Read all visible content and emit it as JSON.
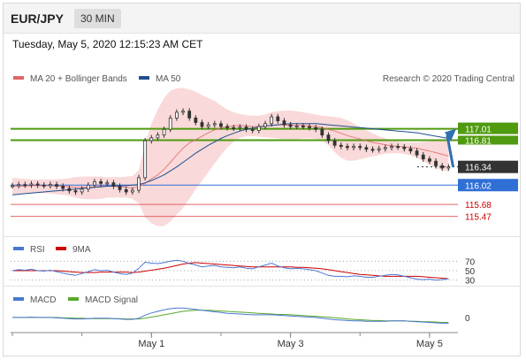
{
  "header": {
    "symbol": "EUR/JPY",
    "timeframe": "30 MIN"
  },
  "datetime": "Tuesday, May 5, 2020 12:15:23 AM CET",
  "credit": "Research © 2020 Trading Central",
  "colors": {
    "ma20": "#e06666",
    "band_fill": "#f8d0d0",
    "ma50": "#1f4f8f",
    "resistance": "#4f9a0f",
    "pivot": "#2f6fd6",
    "support": "#e06666",
    "current": "#333333",
    "arrow": "#2f6fb2",
    "candle": "#333333",
    "rsi": "#4a78d0",
    "rsi_ma": "#cc0000",
    "macd": "#4a78d0",
    "macd_signal": "#5aa82a"
  },
  "chart_data": [
    {
      "type": "candlestick",
      "legend": [
        "MA 20 + Bollinger Bands",
        "MA 50"
      ],
      "ylim": [
        115.2,
        117.75
      ],
      "x_ticks": [
        "May 1",
        "May 3",
        "May 5"
      ],
      "bars_per_tick": 22,
      "first_tick_bar": 22,
      "n_bars": 70,
      "close": [
        116.01,
        116.03,
        116.02,
        116.04,
        116.02,
        116.01,
        116.03,
        116.0,
        115.96,
        115.92,
        115.9,
        115.95,
        116.02,
        116.08,
        116.05,
        116.06,
        116.0,
        115.94,
        115.9,
        115.93,
        116.15,
        116.8,
        116.85,
        116.9,
        117.0,
        117.2,
        117.3,
        117.32,
        117.2,
        117.12,
        117.05,
        117.08,
        117.1,
        117.05,
        117.03,
        117.02,
        117.04,
        117.0,
        116.98,
        117.05,
        117.1,
        117.22,
        117.15,
        117.08,
        117.05,
        117.06,
        117.05,
        117.03,
        117.0,
        116.9,
        116.8,
        116.72,
        116.7,
        116.68,
        116.7,
        116.68,
        116.65,
        116.64,
        116.66,
        116.68,
        116.7,
        116.69,
        116.66,
        116.62,
        116.55,
        116.48,
        116.44,
        116.36,
        116.32,
        116.34
      ],
      "ma20": [
        116.0,
        116.0,
        116.0,
        116.01,
        116.01,
        116.01,
        116.01,
        116.0,
        116.0,
        115.99,
        115.98,
        115.98,
        115.98,
        115.99,
        116.0,
        116.0,
        116.0,
        115.99,
        115.98,
        115.97,
        115.99,
        116.05,
        116.13,
        116.2,
        116.3,
        116.42,
        116.55,
        116.67,
        116.76,
        116.82,
        116.88,
        116.94,
        116.99,
        117.02,
        117.05,
        117.06,
        117.07,
        117.06,
        117.05,
        117.05,
        117.06,
        117.07,
        117.08,
        117.08,
        117.07,
        117.07,
        117.07,
        117.06,
        117.05,
        117.03,
        117.0,
        116.97,
        116.93,
        116.89,
        116.86,
        116.83,
        116.8,
        116.77,
        116.75,
        116.73,
        116.71,
        116.7,
        116.69,
        116.68,
        116.67,
        116.64,
        116.62,
        116.59,
        116.56,
        116.53
      ],
      "bb_upper": [
        116.15,
        116.14,
        116.13,
        116.12,
        116.12,
        116.12,
        116.12,
        116.12,
        116.13,
        116.14,
        116.16,
        116.17,
        116.17,
        116.17,
        116.17,
        116.16,
        116.16,
        116.16,
        116.17,
        116.18,
        116.28,
        116.75,
        117.1,
        117.35,
        117.55,
        117.68,
        117.72,
        117.73,
        117.7,
        117.66,
        117.6,
        117.55,
        117.5,
        117.42,
        117.35,
        117.3,
        117.27,
        117.25,
        117.24,
        117.24,
        117.26,
        117.3,
        117.32,
        117.33,
        117.33,
        117.32,
        117.3,
        117.28,
        117.26,
        117.24,
        117.23,
        117.22,
        117.2,
        117.16,
        117.1,
        117.04,
        116.98,
        116.93,
        116.88,
        116.84,
        116.81,
        116.79,
        116.78,
        116.77,
        116.77,
        116.78,
        116.79,
        116.8,
        116.8,
        116.79
      ],
      "bb_lower": [
        115.85,
        115.86,
        115.87,
        115.88,
        115.88,
        115.88,
        115.87,
        115.86,
        115.85,
        115.83,
        115.8,
        115.78,
        115.77,
        115.77,
        115.78,
        115.8,
        115.8,
        115.8,
        115.8,
        115.78,
        115.7,
        115.45,
        115.35,
        115.3,
        115.3,
        115.38,
        115.5,
        115.62,
        115.78,
        115.95,
        116.1,
        116.25,
        116.4,
        116.55,
        116.68,
        116.78,
        116.85,
        116.88,
        116.88,
        116.87,
        116.86,
        116.85,
        116.84,
        116.83,
        116.83,
        116.83,
        116.84,
        116.84,
        116.83,
        116.8,
        116.72,
        116.6,
        116.5,
        116.45,
        116.45,
        116.47,
        116.5,
        116.53,
        116.55,
        116.57,
        116.58,
        116.58,
        116.57,
        116.54,
        116.5,
        116.44,
        116.38,
        116.32,
        116.28,
        116.26
      ],
      "ma50": [
        115.85,
        115.86,
        115.87,
        115.88,
        115.89,
        115.9,
        115.91,
        115.92,
        115.93,
        115.94,
        115.95,
        115.96,
        115.97,
        115.98,
        115.99,
        116.0,
        116.0,
        116.01,
        116.01,
        116.02,
        116.03,
        116.06,
        116.1,
        116.15,
        116.2,
        116.27,
        116.34,
        116.42,
        116.5,
        116.58,
        116.65,
        116.72,
        116.78,
        116.84,
        116.89,
        116.93,
        116.97,
        117.0,
        117.02,
        117.04,
        117.06,
        117.07,
        117.08,
        117.09,
        117.1,
        117.1,
        117.1,
        117.1,
        117.1,
        117.09,
        117.08,
        117.07,
        117.06,
        117.05,
        117.04,
        117.03,
        117.02,
        117.01,
        117.0,
        116.99,
        116.98,
        116.97,
        116.96,
        116.95,
        116.94,
        116.92,
        116.9,
        116.88,
        116.86,
        116.84
      ],
      "levels": [
        {
          "value": 117.01,
          "label": "117.01",
          "kind": "resistance"
        },
        {
          "value": 116.81,
          "label": "116.81",
          "kind": "resistance"
        },
        {
          "value": 116.34,
          "label": "116.34",
          "kind": "current"
        },
        {
          "value": 116.02,
          "label": "116.02",
          "kind": "pivot"
        },
        {
          "value": 115.68,
          "label": "115.68",
          "kind": "support"
        },
        {
          "value": 115.47,
          "label": "115.47",
          "kind": "support"
        }
      ],
      "arrow": {
        "from": 116.34,
        "to": 117.01
      }
    },
    {
      "type": "line",
      "legend": [
        "RSI",
        "9MA"
      ],
      "ylim": [
        20,
        80
      ],
      "ticks": [
        70,
        50,
        30
      ],
      "rsi": [
        50,
        52,
        51,
        53,
        50,
        49,
        51,
        48,
        45,
        42,
        40,
        44,
        48,
        52,
        50,
        51,
        47,
        44,
        42,
        45,
        55,
        68,
        66,
        65,
        67,
        70,
        72,
        70,
        65,
        62,
        58,
        60,
        61,
        58,
        57,
        56,
        58,
        55,
        54,
        58,
        62,
        66,
        60,
        56,
        54,
        55,
        54,
        52,
        50,
        45,
        40,
        38,
        38,
        37,
        39,
        38,
        36,
        36,
        38,
        40,
        42,
        41,
        38,
        35,
        32,
        31,
        32,
        30,
        31,
        33
      ],
      "ma9": [
        50,
        50,
        50,
        50,
        50,
        50,
        50,
        50,
        49,
        48,
        47,
        46,
        46,
        46,
        47,
        47,
        47,
        47,
        47,
        46,
        47,
        49,
        51,
        53,
        55,
        58,
        61,
        64,
        66,
        67,
        66,
        65,
        64,
        63,
        62,
        61,
        60,
        59,
        58,
        58,
        58,
        58,
        58,
        58,
        58,
        57,
        57,
        56,
        55,
        54,
        52,
        50,
        48,
        46,
        44,
        42,
        41,
        40,
        39,
        38,
        38,
        38,
        38,
        38,
        38,
        37,
        36,
        35,
        34,
        33
      ]
    },
    {
      "type": "line",
      "legend": [
        "MACD",
        "MACD Signal"
      ],
      "ylim": [
        -0.35,
        0.3
      ],
      "ticks": [
        0
      ],
      "macd": [
        0,
        0,
        0,
        0.01,
        0,
        0,
        0,
        -0.01,
        -0.02,
        -0.03,
        -0.04,
        -0.04,
        -0.03,
        -0.02,
        -0.02,
        -0.02,
        -0.03,
        -0.04,
        -0.05,
        -0.05,
        -0.02,
        0.06,
        0.12,
        0.16,
        0.2,
        0.23,
        0.25,
        0.25,
        0.23,
        0.21,
        0.19,
        0.17,
        0.15,
        0.13,
        0.11,
        0.1,
        0.09,
        0.08,
        0.07,
        0.07,
        0.07,
        0.07,
        0.06,
        0.05,
        0.04,
        0.03,
        0.02,
        0.01,
        0,
        -0.02,
        -0.04,
        -0.06,
        -0.07,
        -0.08,
        -0.09,
        -0.09,
        -0.1,
        -0.1,
        -0.1,
        -0.1,
        -0.09,
        -0.09,
        -0.09,
        -0.1,
        -0.11,
        -0.12,
        -0.13,
        -0.14,
        -0.15,
        -0.15
      ],
      "signal": [
        0,
        0,
        0,
        0,
        0,
        0,
        0,
        0,
        -0.01,
        -0.01,
        -0.02,
        -0.02,
        -0.03,
        -0.03,
        -0.03,
        -0.03,
        -0.03,
        -0.03,
        -0.04,
        -0.04,
        -0.04,
        -0.02,
        0.01,
        0.04,
        0.07,
        0.1,
        0.13,
        0.16,
        0.18,
        0.19,
        0.19,
        0.19,
        0.18,
        0.17,
        0.16,
        0.15,
        0.14,
        0.13,
        0.12,
        0.11,
        0.1,
        0.09,
        0.08,
        0.08,
        0.07,
        0.06,
        0.05,
        0.04,
        0.03,
        0.02,
        0.01,
        -0.01,
        -0.02,
        -0.04,
        -0.05,
        -0.06,
        -0.07,
        -0.08,
        -0.08,
        -0.09,
        -0.09,
        -0.09,
        -0.09,
        -0.1,
        -0.1,
        -0.11,
        -0.11,
        -0.12,
        -0.13,
        -0.13
      ]
    }
  ]
}
